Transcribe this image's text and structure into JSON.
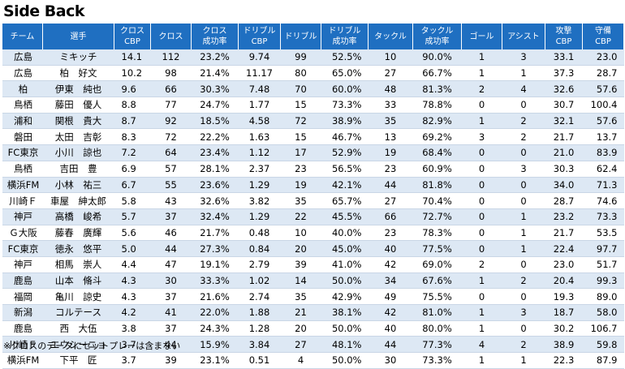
{
  "title": "Side Back",
  "headers": [
    "チーム",
    "選手",
    "クロス\nCBP",
    "クロス",
    "クロス\n成功率",
    "ドリブル\nCBP",
    "ドリブル",
    "ドリブル\n成功率",
    "タックル",
    "タックル\n成功率",
    "ゴール",
    "アシスト",
    "攻撃\nCBP",
    "守備\nCBP"
  ],
  "rows": [
    [
      "広島",
      "ミキッチ",
      "14.1",
      "112",
      "23.2%",
      "9.74",
      "99",
      "52.5%",
      "10",
      "90.0%",
      "1",
      "3",
      "33.1",
      "23.0"
    ],
    [
      "広島",
      "柏　好文",
      "10.2",
      "98",
      "21.4%",
      "11.17",
      "80",
      "65.0%",
      "27",
      "66.7%",
      "1",
      "1",
      "37.3",
      "28.7"
    ],
    [
      "柏",
      "伊東　純也",
      "9.6",
      "66",
      "30.3%",
      "7.48",
      "70",
      "60.0%",
      "48",
      "81.3%",
      "2",
      "4",
      "32.6",
      "57.6"
    ],
    [
      "鳥栖",
      "藤田　優人",
      "8.8",
      "77",
      "24.7%",
      "1.77",
      "15",
      "73.3%",
      "33",
      "78.8%",
      "0",
      "0",
      "30.7",
      "100.4"
    ],
    [
      "浦和",
      "関根　貴大",
      "8.7",
      "92",
      "18.5%",
      "4.58",
      "72",
      "38.9%",
      "35",
      "82.9%",
      "1",
      "2",
      "32.1",
      "57.6"
    ],
    [
      "磐田",
      "太田　吉彰",
      "8.3",
      "72",
      "22.2%",
      "1.63",
      "15",
      "46.7%",
      "13",
      "69.2%",
      "3",
      "2",
      "21.7",
      "13.7"
    ],
    [
      "FC東京",
      "小川　諒也",
      "7.2",
      "64",
      "23.4%",
      "1.12",
      "17",
      "52.9%",
      "19",
      "68.4%",
      "0",
      "0",
      "21.0",
      "83.9"
    ],
    [
      "鳥栖",
      "吉田　豊",
      "6.9",
      "57",
      "28.1%",
      "2.37",
      "23",
      "56.5%",
      "23",
      "60.9%",
      "0",
      "3",
      "30.3",
      "62.4"
    ],
    [
      "横浜FM",
      "小林　祐三",
      "6.7",
      "55",
      "23.6%",
      "1.29",
      "19",
      "42.1%",
      "44",
      "81.8%",
      "0",
      "0",
      "34.0",
      "71.3"
    ],
    [
      "川崎Ｆ",
      "車屋　紳太郎",
      "5.8",
      "43",
      "32.6%",
      "3.82",
      "35",
      "65.7%",
      "27",
      "70.4%",
      "0",
      "0",
      "28.7",
      "74.6"
    ],
    [
      "神戸",
      "高橋　峻希",
      "5.7",
      "37",
      "32.4%",
      "1.29",
      "22",
      "45.5%",
      "66",
      "72.7%",
      "0",
      "1",
      "23.2",
      "73.3"
    ],
    [
      "Ｇ大阪",
      "藤春　廣輝",
      "5.6",
      "46",
      "21.7%",
      "0.48",
      "10",
      "40.0%",
      "23",
      "78.3%",
      "0",
      "1",
      "21.7",
      "53.5"
    ],
    [
      "FC東京",
      "徳永　悠平",
      "5.0",
      "44",
      "27.3%",
      "0.84",
      "20",
      "45.0%",
      "40",
      "77.5%",
      "0",
      "1",
      "22.4",
      "97.7"
    ],
    [
      "神戸",
      "相馬　崇人",
      "4.4",
      "47",
      "19.1%",
      "2.79",
      "39",
      "41.0%",
      "42",
      "69.0%",
      "2",
      "0",
      "23.0",
      "51.7"
    ],
    [
      "鹿島",
      "山本　脩斗",
      "4.3",
      "30",
      "33.3%",
      "1.02",
      "14",
      "50.0%",
      "34",
      "67.6%",
      "1",
      "2",
      "20.4",
      "99.3"
    ],
    [
      "福岡",
      "亀川　諒史",
      "4.3",
      "37",
      "21.6%",
      "2.74",
      "35",
      "42.9%",
      "49",
      "75.5%",
      "0",
      "0",
      "19.3",
      "89.0"
    ],
    [
      "新潟",
      "コルテース",
      "4.2",
      "41",
      "22.0%",
      "1.88",
      "21",
      "38.1%",
      "42",
      "81.0%",
      "1",
      "3",
      "18.7",
      "58.0"
    ],
    [
      "鹿島",
      "西　大伍",
      "3.8",
      "37",
      "24.3%",
      "1.28",
      "20",
      "50.0%",
      "40",
      "80.0%",
      "1",
      "0",
      "30.2",
      "106.7"
    ],
    [
      "川崎Ｆ",
      "エウシーニョ",
      "3.7",
      "44",
      "15.9%",
      "3.84",
      "27",
      "48.1%",
      "44",
      "77.3%",
      "4",
      "2",
      "38.9",
      "59.8"
    ],
    [
      "横浜FM",
      "下平　匠",
      "3.7",
      "39",
      "23.1%",
      "0.51",
      "4",
      "50.0%",
      "30",
      "73.3%",
      "1",
      "1",
      "22.3",
      "87.9"
    ]
  ],
  "note": "※クロスのデータにセットプレーは含まない"
}
